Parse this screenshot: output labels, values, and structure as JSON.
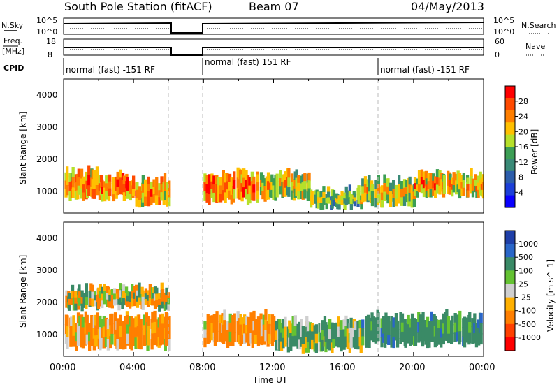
{
  "header": {
    "station": "South Pole Station (fitACF)",
    "beam": "Beam 07",
    "date": "04/May/2013"
  },
  "sky_panel": {
    "left_label": "N.Sky",
    "right_label": "N.Search",
    "left_ticks": [
      "10^5",
      "10^0"
    ],
    "right_ticks": [
      "10^5",
      "10^0"
    ]
  },
  "freq_panel": {
    "left_label_1": "Freq.",
    "left_label_2": "[MHz]",
    "right_label": "Nave",
    "left_ticks": [
      "18",
      "8"
    ],
    "right_ticks": [
      "60",
      "0"
    ]
  },
  "cpid": {
    "label": "CPID",
    "segments": [
      {
        "text": "normal (fast) -151 RF",
        "start": 0,
        "end": 6
      },
      {
        "text": "normal (fast) 151 RF",
        "start": 8,
        "end": 18
      },
      {
        "text": "normal (fast) -151 RF",
        "start": 18,
        "end": 24
      }
    ]
  },
  "x_axis": {
    "label": "Time UT",
    "ticks": [
      "00:00",
      "04:00",
      "08:00",
      "12:00",
      "16:00",
      "20:00",
      "00:00"
    ]
  },
  "range_axis": {
    "label": "Slant Range [km]",
    "ticks": [
      "4000",
      "3000",
      "2000",
      "1000"
    ]
  },
  "power_colorbar": {
    "label": "Power [dB]",
    "ticks": [
      "28",
      "24",
      "20",
      "16",
      "12",
      "8",
      "4"
    ],
    "colors": [
      "#ff0000",
      "#ff4a00",
      "#ff7f00",
      "#ffc000",
      "#b6e02a",
      "#3c9e55",
      "#3a8a77",
      "#2c5dab",
      "#1c3fd8",
      "#0a00ff"
    ]
  },
  "velocity_colorbar": {
    "label": "Velocity [m s^-1]",
    "ticks": [
      "1000",
      "500",
      "100",
      "25",
      "-25",
      "-100",
      "-500",
      "-1000"
    ],
    "colors": [
      "#1f3fa8",
      "#2a66c8",
      "#3a8a66",
      "#64c232",
      "#cfcfcf",
      "#ffb000",
      "#ff7f00",
      "#ff4000",
      "#ff0000"
    ]
  },
  "chart_data": [
    {
      "type": "heatmap",
      "title": "Power",
      "xlabel": "Time UT",
      "ylabel": "Slant Range [km]",
      "xlim": [
        0,
        24
      ],
      "ylim": [
        180,
        4600
      ],
      "colorbar": "Power [dB]",
      "data_gaps_hours": [
        [
          6,
          8
        ]
      ],
      "bands": [
        {
          "start": 0,
          "end": 2,
          "range": [
            700,
            1600
          ],
          "dB": 22
        },
        {
          "start": 2,
          "end": 4,
          "range": [
            700,
            1400
          ],
          "dB": 24
        },
        {
          "start": 4,
          "end": 6,
          "range": [
            500,
            1300
          ],
          "dB": 22
        },
        {
          "start": 8,
          "end": 11,
          "range": [
            600,
            1500
          ],
          "dB": 24
        },
        {
          "start": 11,
          "end": 14,
          "range": [
            700,
            1500
          ],
          "dB": 18
        },
        {
          "start": 14,
          "end": 17,
          "range": [
            400,
            900
          ],
          "dB": 14
        },
        {
          "start": 17,
          "end": 20,
          "range": [
            500,
            1300
          ],
          "dB": 16
        },
        {
          "start": 20,
          "end": 24,
          "range": [
            800,
            1500
          ],
          "dB": 20
        }
      ]
    },
    {
      "type": "heatmap",
      "title": "Velocity",
      "xlabel": "Time UT",
      "ylabel": "Slant Range [km]",
      "xlim": [
        0,
        24
      ],
      "ylim": [
        180,
        4600
      ],
      "colorbar": "Velocity [m s^-1]",
      "data_gaps_hours": [
        [
          6,
          8
        ]
      ],
      "bands": [
        {
          "start": 0,
          "end": 6,
          "range": [
            500,
            1500
          ],
          "velocity": -150
        },
        {
          "start": 0,
          "end": 6,
          "range": [
            1800,
            2400
          ],
          "velocity": 0
        },
        {
          "start": 8,
          "end": 12,
          "range": [
            600,
            1500
          ],
          "velocity": -200
        },
        {
          "start": 12,
          "end": 17,
          "range": [
            400,
            1300
          ],
          "velocity": 150
        },
        {
          "start": 17,
          "end": 24,
          "range": [
            600,
            1500
          ],
          "velocity": 300
        }
      ]
    }
  ]
}
